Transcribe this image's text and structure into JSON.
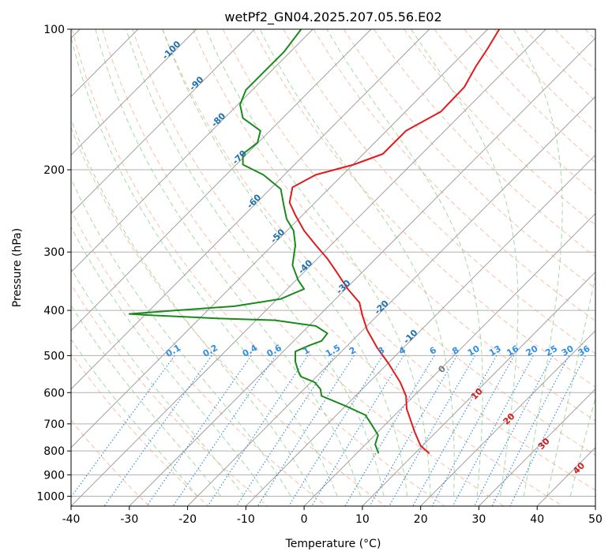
{
  "chart_data": {
    "type": "line",
    "title": "wetPf2_GN04.2025.207.05.56.E02",
    "xlabel": "Temperature (°C)",
    "ylabel": "Pressure (hPa)",
    "xlim": [
      -40,
      50
    ],
    "ylim": [
      1050,
      100
    ],
    "y_scale": "log",
    "x_ticks": [
      "-40",
      "-30",
      "-20",
      "-10",
      "0",
      "10",
      "20",
      "30",
      "40",
      "50"
    ],
    "y_ticks": [
      "100",
      "200",
      "300",
      "400",
      "500",
      "600",
      "700",
      "800",
      "900",
      "1000"
    ],
    "grid": true,
    "colors": {
      "temperature": "#e31a1c",
      "dewpoint": "#1a8a1a",
      "isotherm": "#a0a0a0",
      "dry_adiabat": "#f4a582",
      "moist_adiabat": "#8fcf8f",
      "mixing_ratio": "#3a8edc"
    },
    "series": [
      {
        "points": [
          [
            33.5,
            100
          ],
          [
            31.5,
            110
          ],
          [
            29.5,
            120
          ],
          [
            27.5,
            133
          ],
          [
            23.5,
            150
          ],
          [
            17.5,
            165
          ],
          [
            13.5,
            185
          ],
          [
            8.5,
            195
          ],
          [
            2,
            205
          ],
          [
            -2,
            218
          ],
          [
            -2.5,
            235
          ],
          [
            -1.5,
            250
          ],
          [
            0,
            270
          ],
          [
            2,
            290
          ],
          [
            4,
            310
          ],
          [
            5.5,
            330
          ],
          [
            7.5,
            360
          ],
          [
            9.5,
            385
          ],
          [
            10,
            410
          ],
          [
            10.8,
            440
          ],
          [
            12.5,
            480
          ],
          [
            14.5,
            520
          ],
          [
            16.5,
            570
          ],
          [
            17.5,
            610
          ],
          [
            17.6,
            650
          ],
          [
            18.5,
            700
          ],
          [
            19,
            730
          ],
          [
            20,
            780
          ],
          [
            21.5,
            810
          ]
        ]
      },
      {
        "points": [
          [
            -0.5,
            100
          ],
          [
            -3.5,
            112
          ],
          [
            -6.5,
            122
          ],
          [
            -10,
            135
          ],
          [
            -11,
            145
          ],
          [
            -10.5,
            155
          ],
          [
            -7.5,
            165
          ],
          [
            -8,
            175
          ],
          [
            -10.5,
            185
          ],
          [
            -10.5,
            195
          ],
          [
            -7,
            205
          ],
          [
            -4,
            220
          ],
          [
            -3.5,
            238
          ],
          [
            -3,
            255
          ],
          [
            -1.8,
            270
          ],
          [
            -1.5,
            290
          ],
          [
            -2,
            320
          ],
          [
            -1,
            345
          ],
          [
            0,
            360
          ],
          [
            -4,
            378
          ],
          [
            -12,
            392
          ],
          [
            -22,
            400
          ],
          [
            -30,
            407
          ],
          [
            -26,
            410
          ],
          [
            -15,
            416
          ],
          [
            -5,
            420
          ],
          [
            2,
            432
          ],
          [
            4,
            448
          ],
          [
            3,
            465
          ],
          [
            1,
            475
          ],
          [
            -1.5,
            490
          ],
          [
            -1.5,
            515
          ],
          [
            -1,
            540
          ],
          [
            -0.5,
            555
          ],
          [
            1.8,
            570
          ],
          [
            2.8,
            590
          ],
          [
            3,
            610
          ],
          [
            7,
            640
          ],
          [
            10.5,
            670
          ],
          [
            11.5,
            700
          ],
          [
            12.7,
            740
          ],
          [
            12.2,
            775
          ],
          [
            12.8,
            810
          ]
        ]
      }
    ],
    "isotherm_labels": [
      "-100",
      "-90",
      "-80",
      "-70",
      "-60",
      "-50",
      "-40",
      "-30",
      "-20",
      "-10"
    ],
    "mixing_ratio_labels": [
      "0.1",
      "0.2",
      "0.4",
      "0.6",
      "1",
      "1.5",
      "2",
      "3",
      "4",
      "6",
      "8",
      "10",
      "13",
      "16",
      "20",
      "25",
      "30",
      "36"
    ],
    "moist_adiabat_labels": [
      "0",
      "10",
      "20",
      "30",
      "40"
    ]
  }
}
